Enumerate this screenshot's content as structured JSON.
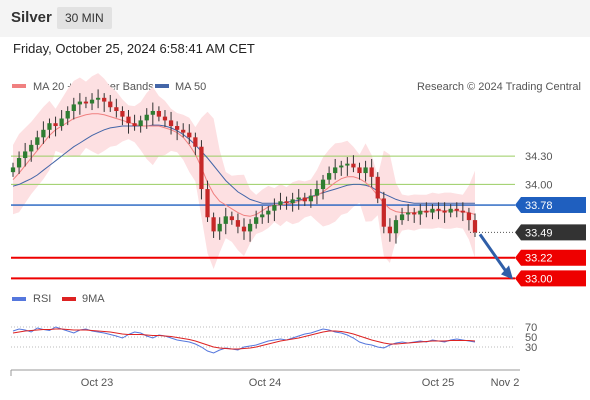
{
  "header": {
    "instrument": "Silver",
    "timeframe": "30 MIN",
    "timestamp": "Friday, October 25, 2024 6:58:41 AM CET"
  },
  "legend": {
    "ma20_bb": "MA 20 + Bollinger Bands",
    "ma50": "MA 50",
    "credit": "Research © 2024 Trading Central",
    "rsi": "RSI",
    "rsi_ma": "9MA"
  },
  "colors": {
    "ma20": "#f08080",
    "bb_fill": "#fde0e2",
    "ma50": "#4466a8",
    "up": "#2e7d32",
    "down": "#c62828",
    "current_line": "#1f5fbf",
    "support": "#ee0000",
    "resistance": "#9acd62",
    "arrow": "#2f5ea8",
    "rsi": "#5577dd",
    "rsi_ma": "#dd2222"
  },
  "chart_data": [
    {
      "type": "candlestick",
      "y_range": [
        32.93,
        34.95
      ],
      "x_ticks": [
        "Oct 23",
        "Oct 24",
        "Oct 25",
        "Nov 2"
      ],
      "levels": [
        {
          "value": 34.3,
          "label": "34.30",
          "kind": "resistance"
        },
        {
          "value": 34.0,
          "label": "34.00",
          "kind": "resistance"
        },
        {
          "value": 33.78,
          "label": "33.78",
          "kind": "current"
        },
        {
          "value": 33.49,
          "label": "33.49",
          "kind": "last"
        },
        {
          "value": 33.22,
          "label": "33.22",
          "kind": "support"
        },
        {
          "value": 33.0,
          "label": "33.00",
          "kind": "support"
        }
      ],
      "close": [
        34.18,
        34.28,
        34.35,
        34.42,
        34.5,
        34.58,
        34.65,
        34.62,
        34.7,
        34.78,
        34.85,
        34.88,
        34.86,
        34.9,
        34.92,
        34.88,
        34.82,
        34.78,
        34.72,
        34.65,
        34.62,
        34.68,
        34.74,
        34.78,
        34.72,
        34.68,
        34.62,
        34.58,
        34.55,
        34.5,
        34.4,
        33.95,
        33.65,
        33.5,
        33.58,
        33.66,
        33.62,
        33.55,
        33.5,
        33.58,
        33.65,
        33.68,
        33.72,
        33.78,
        33.82,
        33.8,
        33.84,
        33.86,
        33.82,
        33.88,
        33.95,
        34.05,
        34.12,
        34.18,
        34.2,
        34.22,
        34.18,
        34.12,
        34.18,
        34.08,
        33.85,
        33.55,
        33.48,
        33.62,
        33.68,
        33.7,
        33.68,
        33.72,
        33.7,
        33.74,
        33.72,
        33.7,
        33.74,
        33.72,
        33.7,
        33.62,
        33.49
      ],
      "ma20": [
        34.05,
        34.12,
        34.2,
        34.28,
        34.36,
        34.44,
        34.52,
        34.58,
        34.62,
        34.66,
        34.7,
        34.72,
        34.74,
        34.75,
        34.75,
        34.74,
        34.72,
        34.7,
        34.68,
        34.66,
        34.64,
        34.62,
        34.62,
        34.62,
        34.62,
        34.6,
        34.58,
        34.55,
        34.5,
        34.42,
        34.32,
        34.18,
        34.02,
        33.9,
        33.82,
        33.78,
        33.74,
        33.7,
        33.67,
        33.66,
        33.68,
        33.72,
        33.76,
        33.78,
        33.78,
        33.79,
        33.8,
        33.82,
        33.84,
        33.86,
        33.88,
        33.92,
        33.97,
        34.02,
        34.06,
        34.08,
        34.08,
        34.06,
        34.02,
        33.96,
        33.88,
        33.8,
        33.74,
        33.71,
        33.7,
        33.7,
        33.7,
        33.71,
        33.71,
        33.72,
        33.72,
        33.72,
        33.72,
        33.72,
        33.71,
        33.7,
        33.68
      ],
      "ma50": [
        33.98,
        34.0,
        34.03,
        34.06,
        34.1,
        34.15,
        34.2,
        34.25,
        34.3,
        34.35,
        34.4,
        34.44,
        34.48,
        34.52,
        34.55,
        34.58,
        34.6,
        34.61,
        34.62,
        34.62,
        34.62,
        34.62,
        34.62,
        34.63,
        34.63,
        34.62,
        34.6,
        34.57,
        34.53,
        34.48,
        34.42,
        34.35,
        34.28,
        34.2,
        34.12,
        34.04,
        33.98,
        33.92,
        33.88,
        33.84,
        33.82,
        33.8,
        33.8,
        33.8,
        33.8,
        33.81,
        33.82,
        33.83,
        33.85,
        33.87,
        33.89,
        33.91,
        33.93,
        33.95,
        33.97,
        33.99,
        34.0,
        34.0,
        33.99,
        33.97,
        33.93,
        33.9,
        33.87,
        33.84,
        33.82,
        33.81,
        33.8,
        33.8,
        33.8,
        33.8,
        33.8,
        33.8,
        33.8,
        33.8,
        33.8,
        33.8,
        33.8
      ]
    },
    {
      "type": "line",
      "y_ticks": [
        70,
        50,
        30
      ],
      "y_range": [
        0,
        100
      ],
      "series": [
        {
          "name": "RSI",
          "values": [
            62,
            66,
            64,
            60,
            68,
            65,
            63,
            70,
            66,
            62,
            58,
            64,
            66,
            62,
            60,
            58,
            55,
            52,
            48,
            55,
            60,
            58,
            52,
            48,
            54,
            52,
            48,
            44,
            42,
            40,
            36,
            30,
            22,
            18,
            24,
            28,
            26,
            24,
            30,
            32,
            34,
            38,
            42,
            44,
            46,
            44,
            48,
            52,
            56,
            58,
            62,
            66,
            64,
            60,
            58,
            54,
            48,
            40,
            36,
            34,
            30,
            28,
            34,
            38,
            40,
            38,
            40,
            42,
            40,
            44,
            42,
            40,
            44,
            46,
            44,
            42,
            40
          ]
        },
        {
          "name": "9MA",
          "values": [
            58,
            60,
            62,
            63,
            64,
            65,
            65,
            66,
            66,
            65,
            64,
            64,
            64,
            63,
            62,
            61,
            60,
            58,
            56,
            55,
            55,
            55,
            54,
            53,
            53,
            52,
            51,
            49,
            47,
            45,
            42,
            38,
            34,
            30,
            28,
            27,
            26,
            26,
            27,
            28,
            30,
            33,
            36,
            39,
            42,
            44,
            46,
            48,
            51,
            54,
            57,
            60,
            62,
            62,
            61,
            59,
            56,
            52,
            48,
            44,
            41,
            38,
            36,
            36,
            37,
            38,
            39,
            40,
            41,
            42,
            42,
            42,
            43,
            43,
            43,
            43,
            42
          ]
        }
      ]
    }
  ]
}
